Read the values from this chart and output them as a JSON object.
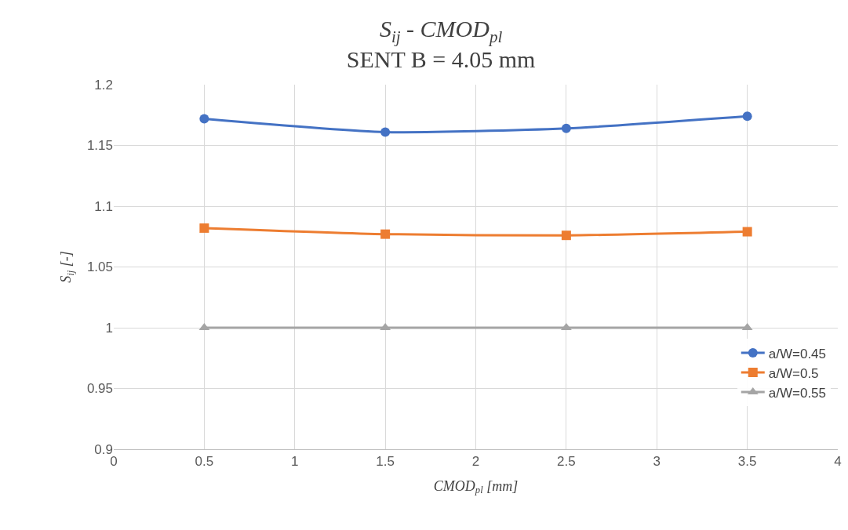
{
  "chart_data": {
    "type": "line",
    "title": "S$_{ij}$ - CMOD$_{pl}$",
    "subtitle": "SENT B = 4.05 mm",
    "xlabel": "CMOD$_{pl}$ [mm]",
    "ylabel": "S$_{ij}$ [-]",
    "x": [
      0.5,
      1.5,
      2.5,
      3.5
    ],
    "series": [
      {
        "name": "a/W=0.45",
        "color": "#4472c4",
        "marker": "circle",
        "values": [
          1.172,
          1.161,
          1.164,
          1.174
        ]
      },
      {
        "name": "a/W=0.5",
        "color": "#ed7d31",
        "marker": "square",
        "values": [
          1.082,
          1.077,
          1.076,
          1.079
        ]
      },
      {
        "name": "a/W=0.55",
        "color": "#a5a5a5",
        "marker": "triangle",
        "values": [
          1.0,
          1.0,
          1.0,
          1.0
        ]
      }
    ],
    "xlim": [
      0,
      4
    ],
    "xticks": [
      0,
      0.5,
      1,
      1.5,
      2,
      2.5,
      3,
      3.5,
      4
    ],
    "ylim": [
      0.9,
      1.2
    ],
    "yticks": [
      0.9,
      0.95,
      1,
      1.05,
      1.1,
      1.15,
      1.2
    ],
    "grid": true,
    "legend": "right",
    "line_style": "solid"
  }
}
